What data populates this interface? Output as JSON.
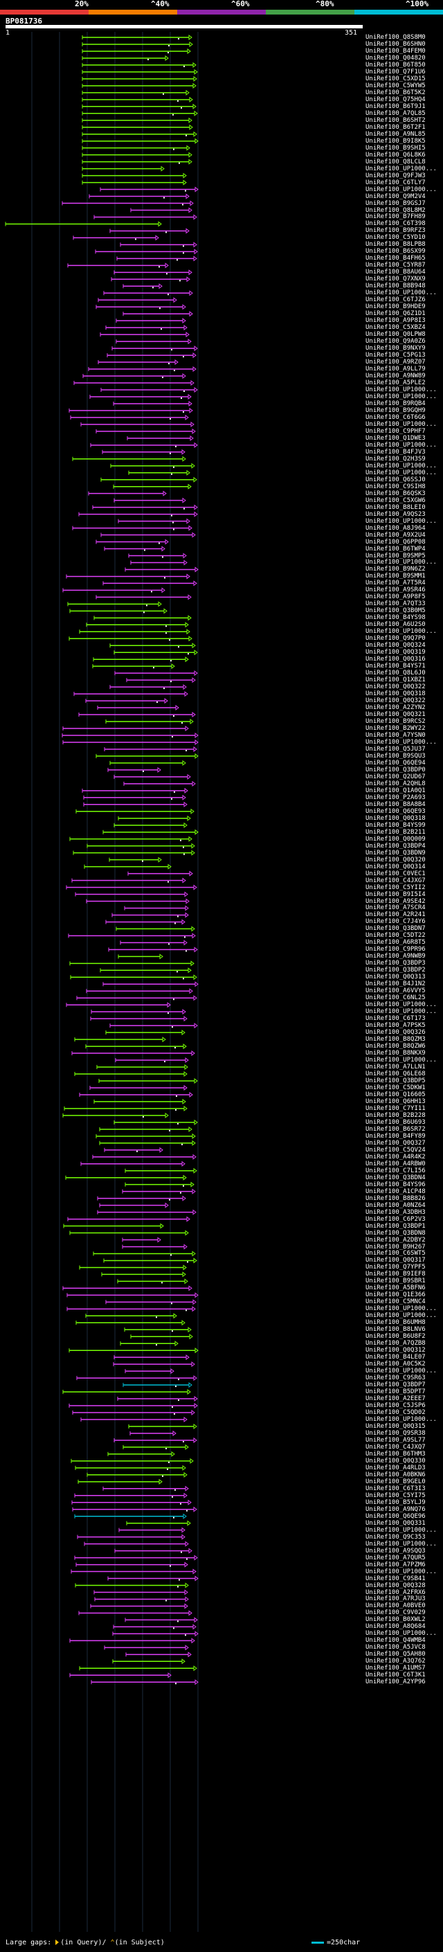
{
  "legend": {
    "labels": [
      "20%",
      "^40%",
      "^60%",
      "^80%",
      "^100%"
    ],
    "colors": [
      "#e53935",
      "#f57c00",
      "#8e24aa",
      "#43a047",
      "#00bcd4"
    ]
  },
  "query": {
    "title": "BP081736",
    "start": "1",
    "end": "351"
  },
  "footer": {
    "large_gaps": "Large gaps:",
    "in_query": "(in Query)/",
    "in_subject": "(in Subject)",
    "scale": "=250char"
  },
  "hit_colors": {
    "green": "#76ff03",
    "magenta": "#e040fb",
    "cyan": "#00bcd4"
  },
  "hits": [
    {
      "label": "UniRef100_Q8S8M0",
      "color": "green"
    },
    {
      "label": "UniRef100_B6SHN0",
      "color": "green"
    },
    {
      "label": "UniRef100_B4FEM0",
      "color": "green"
    },
    {
      "label": "UniRef100_Q04820",
      "color": "green"
    },
    {
      "label": "UniRef100_B6T850",
      "color": "green"
    },
    {
      "label": "UniRef100_Q7F1U6",
      "color": "green"
    },
    {
      "label": "UniRef100_C5XD15",
      "color": "green"
    },
    {
      "label": "UniRef100_C5WYW5",
      "color": "green"
    },
    {
      "label": "UniRef100_B6T5K2",
      "color": "green"
    },
    {
      "label": "UniRef100_Q75HQ4",
      "color": "green"
    },
    {
      "label": "UniRef100_B6T9J1",
      "color": "green"
    },
    {
      "label": "UniRef100_A7QL85",
      "color": "green"
    },
    {
      "label": "UniRef100_B6SHT2",
      "color": "green"
    },
    {
      "label": "UniRef100_B6T2F1",
      "color": "green"
    },
    {
      "label": "UniRef100_A9NL85",
      "color": "green"
    },
    {
      "label": "UniRef100_B9I8K5",
      "color": "green"
    },
    {
      "label": "UniRef100_B9SHI5",
      "color": "green"
    },
    {
      "label": "UniRef100_Q6L8K6",
      "color": "green"
    },
    {
      "label": "UniRef100_Q8LCL8",
      "color": "green"
    },
    {
      "label": "UniRef100_UP1000...",
      "color": "green"
    },
    {
      "label": "UniRef100_Q9FJW3",
      "color": "green"
    },
    {
      "label": "UniRef100_C6TLY7",
      "color": "green"
    },
    {
      "label": "UniRef100_UP1000...",
      "color": "magenta"
    },
    {
      "label": "UniRef100_Q9M2V4",
      "color": "magenta"
    },
    {
      "label": "UniRef100_B9GSJ7",
      "color": "magenta"
    },
    {
      "label": "UniRef100_Q8L8M2",
      "color": "magenta"
    },
    {
      "label": "UniRef100_B7FH89",
      "color": "magenta"
    },
    {
      "label": "UniRef100_C6T398",
      "color": "green"
    },
    {
      "label": "UniRef100_B9RFZ3",
      "color": "magenta"
    },
    {
      "label": "UniRef100_C5YD10",
      "color": "magenta"
    },
    {
      "label": "UniRef100_B8LPB8",
      "color": "magenta"
    },
    {
      "label": "UniRef100_B6SX99",
      "color": "magenta"
    },
    {
      "label": "UniRef100_B4FH65",
      "color": "magenta"
    },
    {
      "label": "UniRef100_C5YR87",
      "color": "magenta"
    },
    {
      "label": "UniRef100_B8AU64",
      "color": "magenta"
    },
    {
      "label": "UniRef100_Q7XNX9",
      "color": "magenta"
    },
    {
      "label": "UniRef100_B8B948",
      "color": "magenta"
    },
    {
      "label": "UniRef100_UP1000...",
      "color": "magenta"
    },
    {
      "label": "UniRef100_C6TJZ6",
      "color": "magenta"
    },
    {
      "label": "UniRef100_B9HDE9",
      "color": "magenta"
    },
    {
      "label": "UniRef100_Q6Z1D1",
      "color": "magenta"
    },
    {
      "label": "UniRef100_A9P8I3",
      "color": "magenta"
    },
    {
      "label": "UniRef100_C5XBZ4",
      "color": "magenta"
    },
    {
      "label": "UniRef100_Q0LPW8",
      "color": "magenta"
    },
    {
      "label": "UniRef100_Q9A0Z6",
      "color": "magenta"
    },
    {
      "label": "UniRef100_B9NXY9",
      "color": "magenta"
    },
    {
      "label": "UniRef100_C5PG13",
      "color": "magenta"
    },
    {
      "label": "UniRef100_A9RZ07",
      "color": "magenta"
    },
    {
      "label": "UniRef100_A9LL79",
      "color": "magenta"
    },
    {
      "label": "UniRef100_A9NW89",
      "color": "magenta"
    },
    {
      "label": "UniRef100_A5PLE2",
      "color": "magenta"
    },
    {
      "label": "UniRef100_UP1000...",
      "color": "magenta"
    },
    {
      "label": "UniRef100_UP1000...",
      "color": "magenta"
    },
    {
      "label": "UniRef100_B9RQB4",
      "color": "magenta"
    },
    {
      "label": "UniRef100_B9GQH9",
      "color": "magenta"
    },
    {
      "label": "UniRef100_C6T6G6",
      "color": "magenta"
    },
    {
      "label": "UniRef100_UP1000...",
      "color": "magenta"
    },
    {
      "label": "UniRef100_C9PHF7",
      "color": "magenta"
    },
    {
      "label": "UniRef100_Q1DWE3",
      "color": "magenta"
    },
    {
      "label": "UniRef100_UP1000...",
      "color": "magenta"
    },
    {
      "label": "UniRef100_B4FJV3",
      "color": "magenta"
    },
    {
      "label": "UniRef100_Q2H3S9",
      "color": "green"
    },
    {
      "label": "UniRef100_UP1000...",
      "color": "green"
    },
    {
      "label": "UniRef100_UP1000...",
      "color": "green"
    },
    {
      "label": "UniRef100_Q6SSJ0",
      "color": "green"
    },
    {
      "label": "UniRef100_C9SIH8",
      "color": "green"
    },
    {
      "label": "UniRef100_B6QSK3",
      "color": "magenta"
    },
    {
      "label": "UniRef100_C5XGW6",
      "color": "magenta"
    },
    {
      "label": "UniRef100_B8LEI0",
      "color": "magenta"
    },
    {
      "label": "UniRef100_A9QS23",
      "color": "magenta"
    },
    {
      "label": "UniRef100_UP1000...",
      "color": "magenta"
    },
    {
      "label": "UniRef100_A8J964",
      "color": "magenta"
    },
    {
      "label": "UniRef100_A9X2U4",
      "color": "magenta"
    },
    {
      "label": "UniRef100_Q6PP08",
      "color": "magenta"
    },
    {
      "label": "UniRef100_B6TWP4",
      "color": "magenta"
    },
    {
      "label": "UniRef100_B9SMP5",
      "color": "magenta"
    },
    {
      "label": "UniRef100_UP1000...",
      "color": "magenta"
    },
    {
      "label": "UniRef100_B9N6Z2",
      "color": "magenta"
    },
    {
      "label": "UniRef100_B9SMM1",
      "color": "magenta"
    },
    {
      "label": "UniRef100_A7T5R4",
      "color": "magenta"
    },
    {
      "label": "UniRef100_A9SR46",
      "color": "magenta"
    },
    {
      "label": "UniRef100_A9P8F5",
      "color": "magenta"
    },
    {
      "label": "UniRef100_A7QT33",
      "color": "green"
    },
    {
      "label": "UniRef100_Q3B0M5",
      "color": "green"
    },
    {
      "label": "UniRef100_B4YS98",
      "color": "green"
    },
    {
      "label": "UniRef100_A6U2S0",
      "color": "green"
    },
    {
      "label": "UniRef100_UP1000...",
      "color": "green"
    },
    {
      "label": "UniRef100_Q9Q7P0",
      "color": "green"
    },
    {
      "label": "UniRef100_Q0Q324",
      "color": "green"
    },
    {
      "label": "UniRef100_Q0Q319",
      "color": "green"
    },
    {
      "label": "UniRef100_Q0Q316",
      "color": "green"
    },
    {
      "label": "UniRef100_B4YS71",
      "color": "green"
    },
    {
      "label": "UniRef100_Q8L6J0",
      "color": "magenta"
    },
    {
      "label": "UniRef100_Q1XBZ1",
      "color": "magenta"
    },
    {
      "label": "UniRef100_Q0Q322",
      "color": "magenta"
    },
    {
      "label": "UniRef100_Q0Q318",
      "color": "magenta"
    },
    {
      "label": "UniRef100_Q0Q322",
      "color": "magenta"
    },
    {
      "label": "UniRef100_A2ZYN2",
      "color": "magenta"
    },
    {
      "label": "UniRef100_Q0Q321",
      "color": "magenta"
    },
    {
      "label": "UniRef100_B9RCS2",
      "color": "green"
    },
    {
      "label": "UniRef100_B2WY22",
      "color": "magenta"
    },
    {
      "label": "UniRef100_A7YSN0",
      "color": "magenta"
    },
    {
      "label": "UniRef100_UP1000...",
      "color": "magenta"
    },
    {
      "label": "UniRef100_Q5JU37",
      "color": "magenta"
    },
    {
      "label": "UniRef100_B9SQU3",
      "color": "green"
    },
    {
      "label": "UniRef100_Q6QE94",
      "color": "green"
    },
    {
      "label": "UniRef100_Q3BDP0",
      "color": "magenta"
    },
    {
      "label": "UniRef100_Q2UD67",
      "color": "magenta"
    },
    {
      "label": "UniRef100_A2QHL8",
      "color": "magenta"
    },
    {
      "label": "UniRef100_Q1A0Q1",
      "color": "magenta"
    },
    {
      "label": "UniRef100_P2A693",
      "color": "magenta"
    },
    {
      "label": "UniRef100_B8A8B4",
      "color": "magenta"
    },
    {
      "label": "UniRef100_Q6QE93",
      "color": "green"
    },
    {
      "label": "UniRef100_Q0Q318",
      "color": "green"
    },
    {
      "label": "UniRef100_B4YS99",
      "color": "green"
    },
    {
      "label": "UniRef100_B2B211",
      "color": "green"
    },
    {
      "label": "UniRef100_Q0Q009",
      "color": "green"
    },
    {
      "label": "UniRef100_Q3BDP4",
      "color": "green"
    },
    {
      "label": "UniRef100_Q3BDN9",
      "color": "green"
    },
    {
      "label": "UniRef100_Q0Q320",
      "color": "green"
    },
    {
      "label": "UniRef100_Q0Q314",
      "color": "green"
    },
    {
      "label": "UniRef100_C0VEC1",
      "color": "magenta"
    },
    {
      "label": "UniRef100_C4JXG7",
      "color": "magenta"
    },
    {
      "label": "UniRef100_C5YII2",
      "color": "magenta"
    },
    {
      "label": "UniRef100_B9I5I4",
      "color": "magenta"
    },
    {
      "label": "UniRef100_A9SE42",
      "color": "magenta"
    },
    {
      "label": "UniRef100_A7SCR4",
      "color": "magenta"
    },
    {
      "label": "UniRef100_A2R241",
      "color": "magenta"
    },
    {
      "label": "UniRef100_C7J4Y6",
      "color": "magenta"
    },
    {
      "label": "UniRef100_Q3BDN7",
      "color": "green"
    },
    {
      "label": "UniRef100_C5DT22",
      "color": "magenta"
    },
    {
      "label": "UniRef100_A6R8T5",
      "color": "magenta"
    },
    {
      "label": "UniRef100_C9PR96",
      "color": "magenta"
    },
    {
      "label": "UniRef100_A9NWB9",
      "color": "green"
    },
    {
      "label": "UniRef100_Q3BDP3",
      "color": "green"
    },
    {
      "label": "UniRef100_Q3BDP2",
      "color": "green"
    },
    {
      "label": "UniRef100_Q0Q313",
      "color": "green"
    },
    {
      "label": "UniRef100_B4J1N2",
      "color": "magenta"
    },
    {
      "label": "UniRef100_A6VVY5",
      "color": "magenta"
    },
    {
      "label": "UniRef100_C6NL25",
      "color": "magenta"
    },
    {
      "label": "UniRef100_UP1000...",
      "color": "magenta"
    },
    {
      "label": "UniRef100_UP1000...",
      "color": "magenta"
    },
    {
      "label": "UniRef100_C6T173",
      "color": "magenta"
    },
    {
      "label": "UniRef100_A7PSK5",
      "color": "magenta"
    },
    {
      "label": "UniRef100_Q0Q326",
      "color": "green"
    },
    {
      "label": "UniRef100_B8QZM3",
      "color": "green"
    },
    {
      "label": "UniRef100_B8QZW6",
      "color": "green"
    },
    {
      "label": "UniRef100_B8NKX9",
      "color": "magenta"
    },
    {
      "label": "UniRef100_UP1000...",
      "color": "magenta"
    },
    {
      "label": "UniRef100_A7LLN1",
      "color": "green"
    },
    {
      "label": "UniRef100_Q6LE68",
      "color": "green"
    },
    {
      "label": "UniRef100_Q3BDP5",
      "color": "green"
    },
    {
      "label": "UniRef100_C5DKW1",
      "color": "magenta"
    },
    {
      "label": "UniRef100_Q16605",
      "color": "magenta"
    },
    {
      "label": "UniRef100_Q6HH13",
      "color": "green"
    },
    {
      "label": "UniRef100_C7YI11",
      "color": "green"
    },
    {
      "label": "UniRef100_B2B228",
      "color": "green"
    },
    {
      "label": "UniRef100_B6U693",
      "color": "green"
    },
    {
      "label": "UniRef100_B6SR72",
      "color": "green"
    },
    {
      "label": "UniRef100_B4FY89",
      "color": "green"
    },
    {
      "label": "UniRef100_Q0Q327",
      "color": "green"
    },
    {
      "label": "UniRef100_C5QV24",
      "color": "magenta"
    },
    {
      "label": "UniRef100_A4R4K2",
      "color": "magenta"
    },
    {
      "label": "UniRef100_A4RBW0",
      "color": "magenta"
    },
    {
      "label": "UniRef100_C7LI56",
      "color": "green"
    },
    {
      "label": "UniRef100_Q3BDN4",
      "color": "green"
    },
    {
      "label": "UniRef100_B4YS96",
      "color": "green"
    },
    {
      "label": "UniRef100_A1CP48",
      "color": "magenta"
    },
    {
      "label": "UniRef100_B8B826",
      "color": "magenta"
    },
    {
      "label": "UniRef100_A0NZ64",
      "color": "magenta"
    },
    {
      "label": "UniRef100_A3DBH3",
      "color": "magenta"
    },
    {
      "label": "UniRef100_C6P2V3",
      "color": "magenta"
    },
    {
      "label": "UniRef100_Q3BDP1",
      "color": "green"
    },
    {
      "label": "UniRef100_Q3BDN8",
      "color": "green"
    },
    {
      "label": "UniRef100_A2DBY2",
      "color": "magenta"
    },
    {
      "label": "UniRef100_B9H267",
      "color": "magenta"
    },
    {
      "label": "UniRef100_C6SWT5",
      "color": "green"
    },
    {
      "label": "UniRef100_Q0Q317",
      "color": "green"
    },
    {
      "label": "UniRef100_Q7YPF5",
      "color": "green"
    },
    {
      "label": "UniRef100_B9IEF8",
      "color": "green"
    },
    {
      "label": "UniRef100_B9SBR1",
      "color": "green"
    },
    {
      "label": "UniRef100_A5BFN6",
      "color": "magenta"
    },
    {
      "label": "UniRef100_Q1E366",
      "color": "magenta"
    },
    {
      "label": "UniRef100_C5MNC4",
      "color": "magenta"
    },
    {
      "label": "UniRef100_UP1000...",
      "color": "magenta"
    },
    {
      "label": "UniRef100_UP1000...",
      "color": "green"
    },
    {
      "label": "UniRef100_B6UMH8",
      "color": "green"
    },
    {
      "label": "UniRef100_B8LNV6",
      "color": "green"
    },
    {
      "label": "UniRef100_B6U8F2",
      "color": "green"
    },
    {
      "label": "UniRef100_A7QZB8",
      "color": "green"
    },
    {
      "label": "UniRef100_Q0Q312",
      "color": "green"
    },
    {
      "label": "UniRef100_B4LE07",
      "color": "magenta"
    },
    {
      "label": "UniRef100_A0C5K2",
      "color": "magenta"
    },
    {
      "label": "UniRef100_UP1000...",
      "color": "magenta"
    },
    {
      "label": "UniRef100_C9SR63",
      "color": "magenta"
    },
    {
      "label": "UniRef100_Q3BDP7",
      "color": "cyan"
    },
    {
      "label": "UniRef100_B5DPT7",
      "color": "green"
    },
    {
      "label": "UniRef100_A2EEE7",
      "color": "magenta"
    },
    {
      "label": "UniRef100_C5JSP6",
      "color": "magenta"
    },
    {
      "label": "UniRef100_C5QD02",
      "color": "magenta"
    },
    {
      "label": "UniRef100_UP1000...",
      "color": "magenta"
    },
    {
      "label": "UniRef100_Q0Q315",
      "color": "green"
    },
    {
      "label": "UniRef100_Q9SR38",
      "color": "magenta"
    },
    {
      "label": "UniRef100_A9SL77",
      "color": "magenta"
    },
    {
      "label": "UniRef100_C4JXQ7",
      "color": "green"
    },
    {
      "label": "UniRef100_B6THM3",
      "color": "green"
    },
    {
      "label": "UniRef100_Q0Q330",
      "color": "green"
    },
    {
      "label": "UniRef100_A4RLD3",
      "color": "green"
    },
    {
      "label": "UniRef100_A0BKN6",
      "color": "green"
    },
    {
      "label": "UniRef100_B9GEL0",
      "color": "green"
    },
    {
      "label": "UniRef100_C6T3I3",
      "color": "magenta"
    },
    {
      "label": "UniRef100_C5YI75",
      "color": "magenta"
    },
    {
      "label": "UniRef100_B5YLJ9",
      "color": "magenta"
    },
    {
      "label": "UniRef100_A9NQ76",
      "color": "magenta"
    },
    {
      "label": "UniRef100_Q6QE96",
      "color": "cyan"
    },
    {
      "label": "UniRef100_Q0Q331",
      "color": "green"
    },
    {
      "label": "UniRef100_UP1000...",
      "color": "magenta"
    },
    {
      "label": "UniRef100_Q9C353",
      "color": "magenta"
    },
    {
      "label": "UniRef100_UP1000...",
      "color": "magenta"
    },
    {
      "label": "UniRef100_A9SQQ3",
      "color": "magenta"
    },
    {
      "label": "UniRef100_A7QUR5",
      "color": "magenta"
    },
    {
      "label": "UniRef100_A7PZM6",
      "color": "magenta"
    },
    {
      "label": "UniRef100_UP1000...",
      "color": "magenta"
    },
    {
      "label": "UniRef100_C9SB41",
      "color": "magenta"
    },
    {
      "label": "UniRef100_Q0Q328",
      "color": "green"
    },
    {
      "label": "UniRef100_A2FRX6",
      "color": "magenta"
    },
    {
      "label": "UniRef100_A7RJU3",
      "color": "magenta"
    },
    {
      "label": "UniRef100_A0BVE0",
      "color": "magenta"
    },
    {
      "label": "UniRef100_C9V029",
      "color": "magenta"
    },
    {
      "label": "UniRef100_B0XWL2",
      "color": "magenta"
    },
    {
      "label": "UniRef100_A8Q684",
      "color": "magenta"
    },
    {
      "label": "UniRef100_UP1000...",
      "color": "magenta"
    },
    {
      "label": "UniRef100_Q4WMB4",
      "color": "magenta"
    },
    {
      "label": "UniRef100_A5JVC8",
      "color": "magenta"
    },
    {
      "label": "UniRef100_Q5AH80",
      "color": "magenta"
    },
    {
      "label": "UniRef100_A3Q762",
      "color": "green"
    },
    {
      "label": "UniRef100_A1UMS7",
      "color": "green"
    },
    {
      "label": "UniRef100_C6T3K1",
      "color": "magenta"
    },
    {
      "label": "UniRef100_A2YP96",
      "color": "magenta"
    }
  ]
}
